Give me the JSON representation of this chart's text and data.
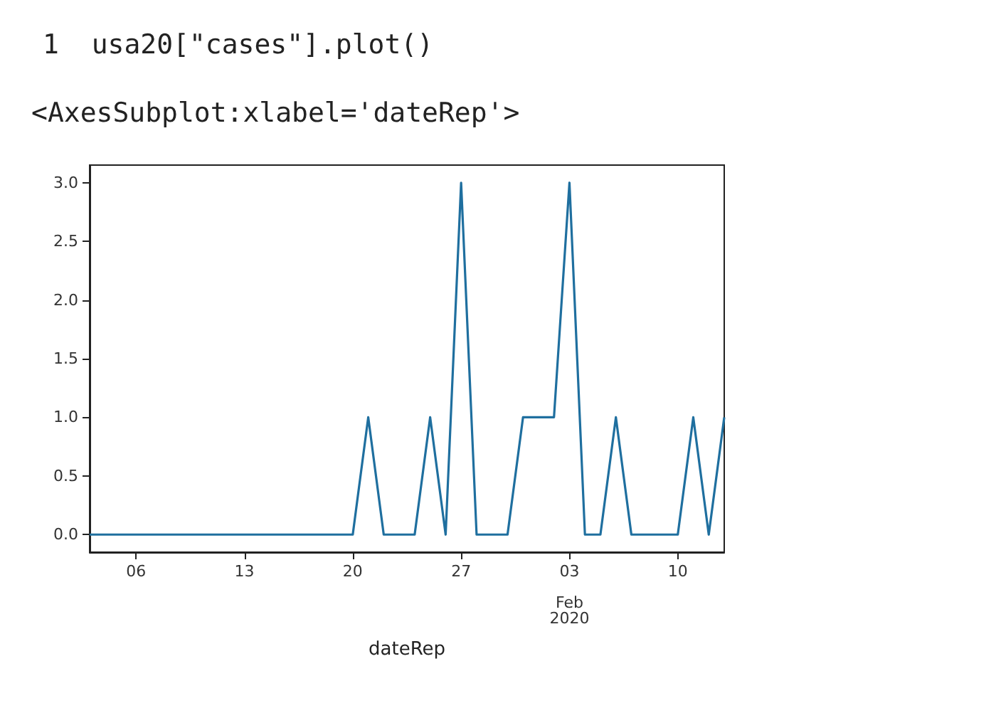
{
  "chart_data": {
    "type": "line",
    "annotations": [
      "1  usa20[\"cases\"].plot()",
      "<AxesSubplot:xlabel='dateRep'>"
    ],
    "xlabel": "dateRep",
    "x": [
      "2020-01-03",
      "2020-01-04",
      "2020-01-05",
      "2020-01-06",
      "2020-01-07",
      "2020-01-08",
      "2020-01-09",
      "2020-01-10",
      "2020-01-11",
      "2020-01-12",
      "2020-01-13",
      "2020-01-14",
      "2020-01-15",
      "2020-01-16",
      "2020-01-17",
      "2020-01-18",
      "2020-01-19",
      "2020-01-20",
      "2020-01-21",
      "2020-01-22",
      "2020-01-23",
      "2020-01-24",
      "2020-01-25",
      "2020-01-26",
      "2020-01-27",
      "2020-01-28",
      "2020-01-29",
      "2020-01-30",
      "2020-01-31",
      "2020-02-01",
      "2020-02-02",
      "2020-02-03",
      "2020-02-04",
      "2020-02-05",
      "2020-02-06",
      "2020-02-07",
      "2020-02-08",
      "2020-02-09",
      "2020-02-10",
      "2020-02-11",
      "2020-02-12",
      "2020-02-13"
    ],
    "series": [
      {
        "color": "#1f6f9f",
        "values": [
          0,
          0,
          0,
          0,
          0,
          0,
          0,
          0,
          0,
          0,
          0,
          0,
          0,
          0,
          0,
          0,
          0,
          0,
          1,
          0,
          0,
          0,
          1,
          0,
          3,
          0,
          0,
          0,
          1,
          1,
          1,
          3,
          0,
          0,
          1,
          0,
          0,
          0,
          0,
          1,
          0,
          1
        ]
      }
    ],
    "xlim": [
      "2020-01-03",
      "2020-02-13"
    ],
    "xticks": [
      {
        "value": "2020-01-06",
        "label": "06"
      },
      {
        "value": "2020-01-13",
        "label": "13"
      },
      {
        "value": "2020-01-20",
        "label": "20"
      },
      {
        "value": "2020-01-27",
        "label": "27"
      },
      {
        "value": "2020-02-03",
        "label": "03\n\nFeb\n2020"
      },
      {
        "value": "2020-02-10",
        "label": "10"
      }
    ],
    "ylim": [
      -0.15,
      3.15
    ],
    "yticks": [
      {
        "value": 0,
        "label": "0.0"
      },
      {
        "value": 0.5,
        "label": "0.5"
      },
      {
        "value": 1,
        "label": "1.0"
      },
      {
        "value": 1.5,
        "label": "1.5"
      },
      {
        "value": 2,
        "label": "2.0"
      },
      {
        "value": 2.5,
        "label": "2.5"
      },
      {
        "value": 3,
        "label": "3.0"
      }
    ],
    "grid": false,
    "marker": "none",
    "line_style": "solid"
  }
}
